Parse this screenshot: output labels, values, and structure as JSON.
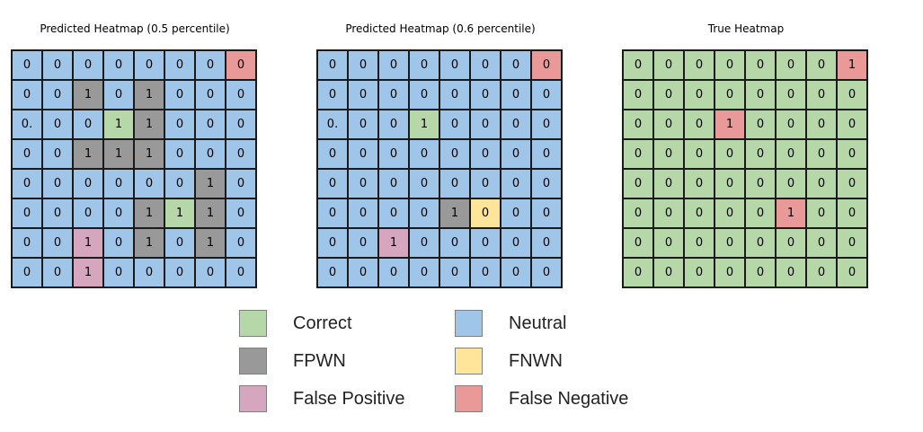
{
  "colors": {
    "neutral": "#9fc5e8",
    "correct": "#b6d7a8",
    "fpwn": "#999999",
    "fp": "#d5a6bd",
    "fnwn": "#ffe599",
    "fn": "#ea9999"
  },
  "heatmaps": [
    {
      "title": "Predicted Heatmap (0.5 percentile)",
      "cells": [
        [
          [
            "0",
            "neutral"
          ],
          [
            "0",
            "neutral"
          ],
          [
            "0",
            "neutral"
          ],
          [
            "0",
            "neutral"
          ],
          [
            "0",
            "neutral"
          ],
          [
            "0",
            "neutral"
          ],
          [
            "0",
            "neutral"
          ],
          [
            "0",
            "fn"
          ]
        ],
        [
          [
            "0",
            "neutral"
          ],
          [
            "0",
            "neutral"
          ],
          [
            "1",
            "fpwn"
          ],
          [
            "0",
            "neutral"
          ],
          [
            "1",
            "fpwn"
          ],
          [
            "0",
            "neutral"
          ],
          [
            "0",
            "neutral"
          ],
          [
            "0",
            "neutral"
          ]
        ],
        [
          [
            "0.",
            "neutral"
          ],
          [
            "0",
            "neutral"
          ],
          [
            "0",
            "neutral"
          ],
          [
            "1",
            "correct"
          ],
          [
            "1",
            "fpwn"
          ],
          [
            "0",
            "neutral"
          ],
          [
            "0",
            "neutral"
          ],
          [
            "0",
            "neutral"
          ]
        ],
        [
          [
            "0",
            "neutral"
          ],
          [
            "0",
            "neutral"
          ],
          [
            "1",
            "fpwn"
          ],
          [
            "1",
            "fpwn"
          ],
          [
            "1",
            "fpwn"
          ],
          [
            "0",
            "neutral"
          ],
          [
            "0",
            "neutral"
          ],
          [
            "0",
            "neutral"
          ]
        ],
        [
          [
            "0",
            "neutral"
          ],
          [
            "0",
            "neutral"
          ],
          [
            "0",
            "neutral"
          ],
          [
            "0",
            "neutral"
          ],
          [
            "0",
            "neutral"
          ],
          [
            "0",
            "neutral"
          ],
          [
            "1",
            "fpwn"
          ],
          [
            "0",
            "neutral"
          ]
        ],
        [
          [
            "0",
            "neutral"
          ],
          [
            "0",
            "neutral"
          ],
          [
            "0",
            "neutral"
          ],
          [
            "0",
            "neutral"
          ],
          [
            "1",
            "fpwn"
          ],
          [
            "1",
            "correct"
          ],
          [
            "1",
            "fpwn"
          ],
          [
            "0",
            "neutral"
          ]
        ],
        [
          [
            "0",
            "neutral"
          ],
          [
            "0",
            "neutral"
          ],
          [
            "1",
            "fp"
          ],
          [
            "0",
            "neutral"
          ],
          [
            "1",
            "fpwn"
          ],
          [
            "0",
            "neutral"
          ],
          [
            "1",
            "fpwn"
          ],
          [
            "0",
            "neutral"
          ]
        ],
        [
          [
            "0",
            "neutral"
          ],
          [
            "0",
            "neutral"
          ],
          [
            "1",
            "fp"
          ],
          [
            "0",
            "neutral"
          ],
          [
            "0",
            "neutral"
          ],
          [
            "0",
            "neutral"
          ],
          [
            "0",
            "neutral"
          ],
          [
            "0",
            "neutral"
          ]
        ]
      ]
    },
    {
      "title": "Predicted Heatmap (0.6 percentile)",
      "cells": [
        [
          [
            "0",
            "neutral"
          ],
          [
            "0",
            "neutral"
          ],
          [
            "0",
            "neutral"
          ],
          [
            "0",
            "neutral"
          ],
          [
            "0",
            "neutral"
          ],
          [
            "0",
            "neutral"
          ],
          [
            "0",
            "neutral"
          ],
          [
            "0",
            "fn"
          ]
        ],
        [
          [
            "0",
            "neutral"
          ],
          [
            "0",
            "neutral"
          ],
          [
            "0",
            "neutral"
          ],
          [
            "0",
            "neutral"
          ],
          [
            "0",
            "neutral"
          ],
          [
            "0",
            "neutral"
          ],
          [
            "0",
            "neutral"
          ],
          [
            "0",
            "neutral"
          ]
        ],
        [
          [
            "0.",
            "neutral"
          ],
          [
            "0",
            "neutral"
          ],
          [
            "0",
            "neutral"
          ],
          [
            "1",
            "correct"
          ],
          [
            "0",
            "neutral"
          ],
          [
            "0",
            "neutral"
          ],
          [
            "0",
            "neutral"
          ],
          [
            "0",
            "neutral"
          ]
        ],
        [
          [
            "0",
            "neutral"
          ],
          [
            "0",
            "neutral"
          ],
          [
            "0",
            "neutral"
          ],
          [
            "0",
            "neutral"
          ],
          [
            "0",
            "neutral"
          ],
          [
            "0",
            "neutral"
          ],
          [
            "0",
            "neutral"
          ],
          [
            "0",
            "neutral"
          ]
        ],
        [
          [
            "0",
            "neutral"
          ],
          [
            "0",
            "neutral"
          ],
          [
            "0",
            "neutral"
          ],
          [
            "0",
            "neutral"
          ],
          [
            "0",
            "neutral"
          ],
          [
            "0",
            "neutral"
          ],
          [
            "0",
            "neutral"
          ],
          [
            "0",
            "neutral"
          ]
        ],
        [
          [
            "0",
            "neutral"
          ],
          [
            "0",
            "neutral"
          ],
          [
            "0",
            "neutral"
          ],
          [
            "0",
            "neutral"
          ],
          [
            "1",
            "fpwn"
          ],
          [
            "0",
            "fnwn"
          ],
          [
            "0",
            "neutral"
          ],
          [
            "0",
            "neutral"
          ]
        ],
        [
          [
            "0",
            "neutral"
          ],
          [
            "0",
            "neutral"
          ],
          [
            "1",
            "fp"
          ],
          [
            "0",
            "neutral"
          ],
          [
            "0",
            "neutral"
          ],
          [
            "0",
            "neutral"
          ],
          [
            "0",
            "neutral"
          ],
          [
            "0",
            "neutral"
          ]
        ],
        [
          [
            "0",
            "neutral"
          ],
          [
            "0",
            "neutral"
          ],
          [
            "0",
            "neutral"
          ],
          [
            "0",
            "neutral"
          ],
          [
            "0",
            "neutral"
          ],
          [
            "0",
            "neutral"
          ],
          [
            "0",
            "neutral"
          ],
          [
            "0",
            "neutral"
          ]
        ]
      ]
    },
    {
      "title": "True Heatmap",
      "cells": [
        [
          [
            "0",
            "correct"
          ],
          [
            "0",
            "correct"
          ],
          [
            "0",
            "correct"
          ],
          [
            "0",
            "correct"
          ],
          [
            "0",
            "correct"
          ],
          [
            "0",
            "correct"
          ],
          [
            "0",
            "correct"
          ],
          [
            "1",
            "fn"
          ]
        ],
        [
          [
            "0",
            "correct"
          ],
          [
            "0",
            "correct"
          ],
          [
            "0",
            "correct"
          ],
          [
            "0",
            "correct"
          ],
          [
            "0",
            "correct"
          ],
          [
            "0",
            "correct"
          ],
          [
            "0",
            "correct"
          ],
          [
            "0",
            "correct"
          ]
        ],
        [
          [
            "0",
            "correct"
          ],
          [
            "0",
            "correct"
          ],
          [
            "0",
            "correct"
          ],
          [
            "1",
            "fn"
          ],
          [
            "0",
            "correct"
          ],
          [
            "0",
            "correct"
          ],
          [
            "0",
            "correct"
          ],
          [
            "0",
            "correct"
          ]
        ],
        [
          [
            "0",
            "correct"
          ],
          [
            "0",
            "correct"
          ],
          [
            "0",
            "correct"
          ],
          [
            "0",
            "correct"
          ],
          [
            "0",
            "correct"
          ],
          [
            "0",
            "correct"
          ],
          [
            "0",
            "correct"
          ],
          [
            "0",
            "correct"
          ]
        ],
        [
          [
            "0",
            "correct"
          ],
          [
            "0",
            "correct"
          ],
          [
            "0",
            "correct"
          ],
          [
            "0",
            "correct"
          ],
          [
            "0",
            "correct"
          ],
          [
            "0",
            "correct"
          ],
          [
            "0",
            "correct"
          ],
          [
            "0",
            "correct"
          ]
        ],
        [
          [
            "0",
            "correct"
          ],
          [
            "0",
            "correct"
          ],
          [
            "0",
            "correct"
          ],
          [
            "0",
            "correct"
          ],
          [
            "0",
            "correct"
          ],
          [
            "1",
            "fn"
          ],
          [
            "0",
            "correct"
          ],
          [
            "0",
            "correct"
          ]
        ],
        [
          [
            "0",
            "correct"
          ],
          [
            "0",
            "correct"
          ],
          [
            "0",
            "correct"
          ],
          [
            "0",
            "correct"
          ],
          [
            "0",
            "correct"
          ],
          [
            "0",
            "correct"
          ],
          [
            "0",
            "correct"
          ],
          [
            "0",
            "correct"
          ]
        ],
        [
          [
            "0",
            "correct"
          ],
          [
            "0",
            "correct"
          ],
          [
            "0",
            "correct"
          ],
          [
            "0",
            "correct"
          ],
          [
            "0",
            "correct"
          ],
          [
            "0",
            "correct"
          ],
          [
            "0",
            "correct"
          ],
          [
            "0",
            "correct"
          ]
        ]
      ]
    }
  ],
  "legend": [
    {
      "label": "Correct",
      "key": "correct"
    },
    {
      "label": "Neutral",
      "key": "neutral"
    },
    {
      "label": "FPWN",
      "key": "fpwn"
    },
    {
      "label": "FNWN",
      "key": "fnwn"
    },
    {
      "label": "False Positive",
      "key": "fp"
    },
    {
      "label": "False Negative",
      "key": "fn"
    }
  ]
}
